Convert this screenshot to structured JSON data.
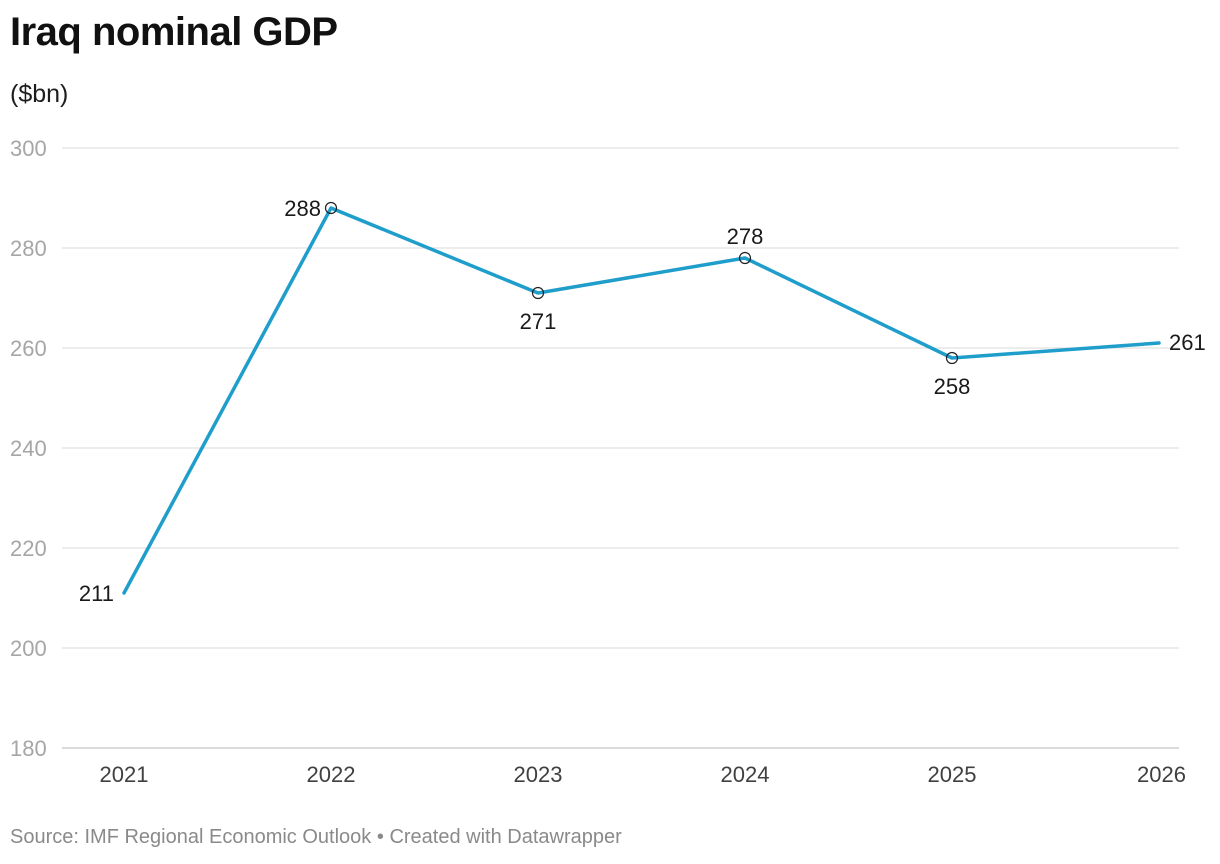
{
  "title": "Iraq nominal GDP",
  "subtitle": "($bn)",
  "footer": {
    "source_label": "Source:",
    "source": "IMF Regional Economic Outlook",
    "separator": "•",
    "credit": "Created with Datawrapper"
  },
  "colors": {
    "line": "#1f9ecb",
    "grid": "#e0e0e0",
    "axis": "#cfcfcf",
    "y_tick": "#a6a6a6",
    "x_tick": "#404040",
    "data_label": "#1a1a1a"
  },
  "chart_data": {
    "type": "line",
    "title": "Iraq nominal GDP",
    "subtitle": "($bn)",
    "xlabel": "",
    "ylabel": "",
    "x": [
      "2021",
      "2022",
      "2023",
      "2024",
      "2025",
      "2026"
    ],
    "series": [
      {
        "values": [
          211,
          288,
          271,
          278,
          258,
          261
        ],
        "point_markers": [
          false,
          true,
          true,
          true,
          true,
          false
        ],
        "label_positions": [
          "left",
          "left",
          "below",
          "above",
          "below",
          "right"
        ]
      }
    ],
    "ylim": [
      180,
      300
    ],
    "y_ticks": [
      180,
      200,
      220,
      240,
      260,
      280,
      300
    ],
    "grid": true,
    "legend": "none"
  }
}
